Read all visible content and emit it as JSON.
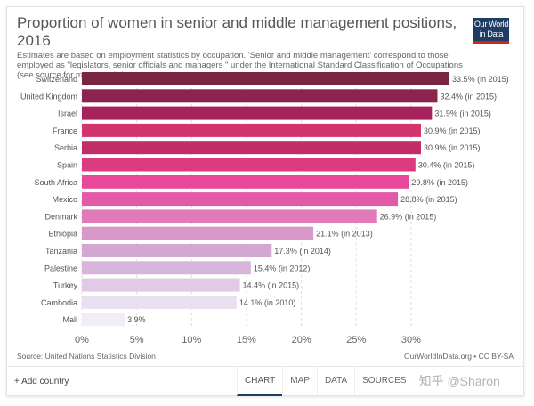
{
  "header": {
    "title": "Proportion of women in senior and middle management positions, 2016",
    "subtitle": "Estimates are based on employment statistics by occupation. 'Senior and middle management' correspond to those employed as \"legislators, senior officials and managers \" under the International Standard Classification of Occupations (see source for more details).",
    "logo": "Our World in Data"
  },
  "chart_data": {
    "type": "bar",
    "orientation": "horizontal",
    "title": "Proportion of women in senior and middle management positions, 2016",
    "categories": [
      "Switzerland",
      "United Kingdom",
      "Israel",
      "France",
      "Serbia",
      "Spain",
      "South Africa",
      "Mexico",
      "Denmark",
      "Ethiopia",
      "Tanzania",
      "Palestine",
      "Turkey",
      "Cambodia",
      "Mali"
    ],
    "values": [
      33.5,
      32.4,
      31.9,
      30.9,
      30.9,
      30.4,
      29.8,
      28.8,
      26.9,
      21.1,
      17.3,
      15.4,
      14.4,
      14.1,
      3.9
    ],
    "data_labels": [
      "33.5% (in 2015)",
      "32.4% (in 2015)",
      "31.9% (in 2015)",
      "30.9% (in 2015)",
      "30.9% (in 2015)",
      "30.4% (in 2015)",
      "29.8% (in 2015)",
      "28.8% (in 2015)",
      "26.9% (in 2015)",
      "21.1% (in 2013)",
      "17.3% (in 2014)",
      "15.4% (in 2012)",
      "14.4% (in 2015)",
      "14.1% (in 2010)",
      "3.9%"
    ],
    "colors": [
      "#7a2541",
      "#8c2450",
      "#a8235e",
      "#d2346e",
      "#c02d68",
      "#dd3b80",
      "#e8479a",
      "#e25aa6",
      "#e07ab8",
      "#d898c8",
      "#d4a6d2",
      "#d8b6dc",
      "#e0cae6",
      "#e9dff0",
      "#f2edf5"
    ],
    "xlim": [
      0,
      33.5
    ],
    "xticks": [
      "0%",
      "5%",
      "10%",
      "15%",
      "20%",
      "25%",
      "30%"
    ],
    "xtick_values": [
      0,
      5,
      10,
      15,
      20,
      25,
      30
    ],
    "grid": true
  },
  "footer": {
    "source": "Source: United Nations Statistics Division",
    "license": "OurWorldInData.org • CC BY-SA",
    "add_country": "+ Add country",
    "tabs": [
      "CHART",
      "MAP",
      "DATA",
      "SOURCES"
    ],
    "watermark": "知乎 @Sharon"
  }
}
